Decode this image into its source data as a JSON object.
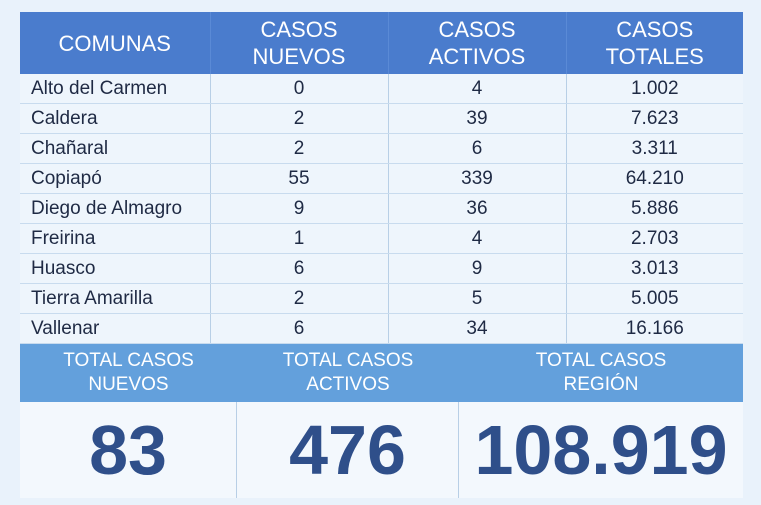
{
  "headers": {
    "comunas": "COMUNAS",
    "nuevos": [
      "CASOS",
      "NUEVOS"
    ],
    "activos": [
      "CASOS",
      "ACTIVOS"
    ],
    "totales": [
      "CASOS",
      "TOTALES"
    ]
  },
  "rows": [
    {
      "comuna": "Alto del Carmen",
      "nuevos": "0",
      "activos": "4",
      "totales": "1.002"
    },
    {
      "comuna": "Caldera",
      "nuevos": "2",
      "activos": "39",
      "totales": "7.623"
    },
    {
      "comuna": "Chañaral",
      "nuevos": "2",
      "activos": "6",
      "totales": "3.311"
    },
    {
      "comuna": "Copiapó",
      "nuevos": "55",
      "activos": "339",
      "totales": "64.210"
    },
    {
      "comuna": "Diego de Almagro",
      "nuevos": "9",
      "activos": "36",
      "totales": "5.886"
    },
    {
      "comuna": "Freirina",
      "nuevos": "1",
      "activos": "4",
      "totales": "2.703"
    },
    {
      "comuna": "Huasco",
      "nuevos": "6",
      "activos": "9",
      "totales": "3.013"
    },
    {
      "comuna": "Tierra Amarilla",
      "nuevos": "2",
      "activos": "5",
      "totales": "5.005"
    },
    {
      "comuna": "Vallenar",
      "nuevos": "6",
      "activos": "34",
      "totales": "16.166"
    }
  ],
  "totals": {
    "nuevos_label": [
      "TOTAL CASOS",
      "NUEVOS"
    ],
    "activos_label": [
      "TOTAL CASOS",
      "ACTIVOS"
    ],
    "region_label": [
      "TOTAL CASOS",
      "REGIÓN"
    ],
    "nuevos_value": "83",
    "activos_value": "476",
    "region_value": "108.919"
  },
  "colors": {
    "header_bg": "#4a7ccd",
    "totals_header_bg": "#63a0dc",
    "value_text": "#2f4f8a"
  }
}
